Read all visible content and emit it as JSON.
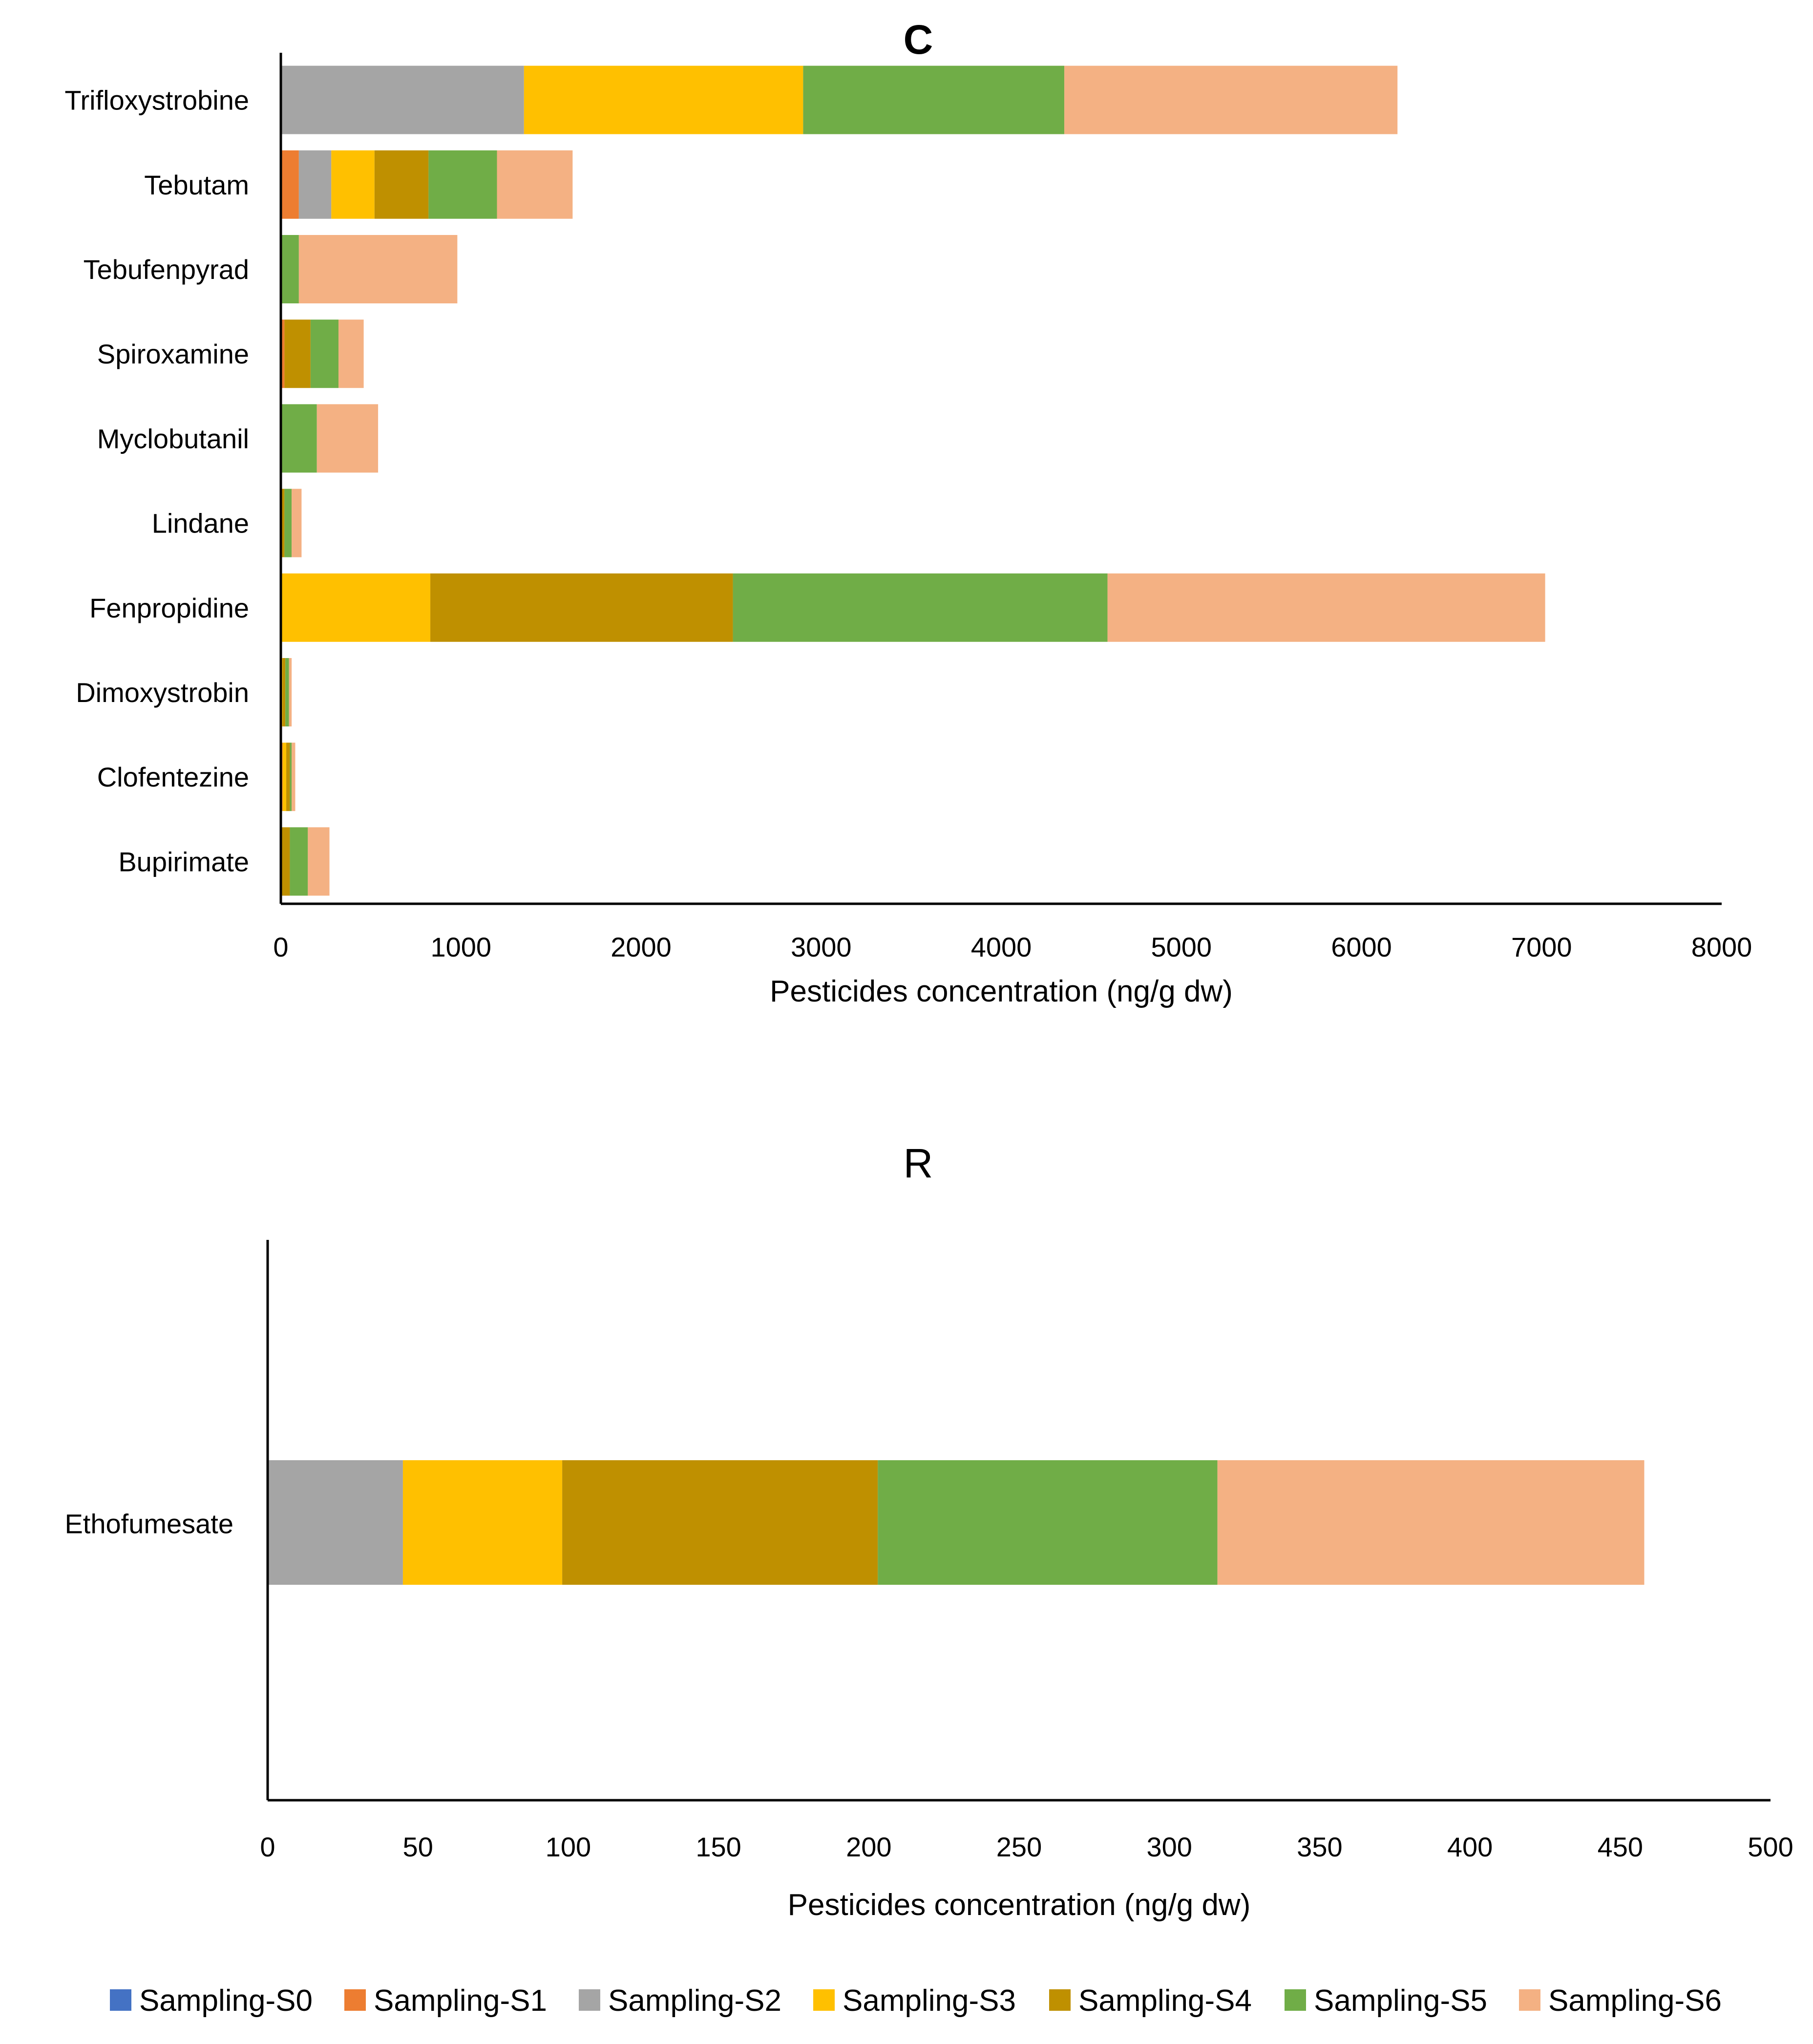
{
  "legend": [
    {
      "name": "Sampling-S0",
      "color": "#4472C4"
    },
    {
      "name": "Sampling-S1",
      "color": "#ED7D31"
    },
    {
      "name": "Sampling-S2",
      "color": "#A5A5A5"
    },
    {
      "name": "Sampling-S3",
      "color": "#FFC000"
    },
    {
      "name": "Sampling-S4",
      "color": "#BF9000"
    },
    {
      "name": "Sampling-S5",
      "color": "#70AD47"
    },
    {
      "name": "Sampling-S6",
      "color": "#F4B183"
    }
  ],
  "chart_data": [
    {
      "type": "bar",
      "orientation": "horizontal",
      "stacked": true,
      "title": "C",
      "xlabel": "Pesticides concentration (ng/g dw)",
      "ylabel": "",
      "xlim": [
        0,
        8000
      ],
      "xticks": [
        0,
        1000,
        2000,
        3000,
        4000,
        5000,
        6000,
        7000,
        8000
      ],
      "grid": false,
      "categories": [
        "Trifloxystrobine",
        "Tebutam",
        "Tebufenpyrad",
        "Spiroxamine",
        "Myclobutanil",
        "Lindane",
        "Fenpropidine",
        "Dimoxystrobin",
        "Clofentezine",
        "Bupirimate"
      ],
      "series": [
        {
          "name": "Sampling-S0",
          "values": [
            0,
            0,
            0,
            0,
            0,
            0,
            0,
            0,
            0,
            0
          ]
        },
        {
          "name": "Sampling-S1",
          "values": [
            0,
            100,
            0,
            20,
            0,
            0,
            0,
            0,
            10,
            0
          ]
        },
        {
          "name": "Sampling-S2",
          "values": [
            1350,
            180,
            0,
            0,
            0,
            0,
            0,
            0,
            0,
            0
          ]
        },
        {
          "name": "Sampling-S3",
          "values": [
            1550,
            240,
            0,
            0,
            0,
            0,
            830,
            10,
            20,
            0
          ]
        },
        {
          "name": "Sampling-S4",
          "values": [
            0,
            300,
            0,
            145,
            0,
            20,
            1680,
            15,
            20,
            50
          ]
        },
        {
          "name": "Sampling-S5",
          "values": [
            1450,
            380,
            100,
            155,
            200,
            40,
            2080,
            20,
            10,
            100
          ]
        },
        {
          "name": "Sampling-S6",
          "values": [
            1850,
            420,
            880,
            140,
            340,
            55,
            2430,
            15,
            20,
            120
          ]
        }
      ]
    },
    {
      "type": "bar",
      "orientation": "horizontal",
      "stacked": true,
      "title": "R",
      "xlabel": "Pesticides concentration (ng/g dw)",
      "ylabel": "",
      "xlim": [
        0,
        500
      ],
      "xticks": [
        0,
        50,
        100,
        150,
        200,
        250,
        300,
        350,
        400,
        450,
        500
      ],
      "grid": false,
      "categories": [
        "Ethofumesate"
      ],
      "series": [
        {
          "name": "Sampling-S0",
          "values": [
            0
          ]
        },
        {
          "name": "Sampling-S1",
          "values": [
            0
          ]
        },
        {
          "name": "Sampling-S2",
          "values": [
            45
          ]
        },
        {
          "name": "Sampling-S3",
          "values": [
            53
          ]
        },
        {
          "name": "Sampling-S4",
          "values": [
            105
          ]
        },
        {
          "name": "Sampling-S5",
          "values": [
            113
          ]
        },
        {
          "name": "Sampling-S6",
          "values": [
            142
          ]
        }
      ]
    }
  ]
}
